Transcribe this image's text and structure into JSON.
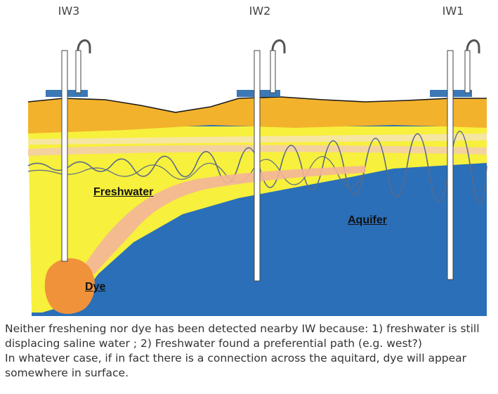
{
  "wells": [
    {
      "id": "iw3",
      "label": "IW3"
    },
    {
      "id": "iw2",
      "label": "IW2"
    },
    {
      "id": "iw1",
      "label": "IW1"
    }
  ],
  "zones": {
    "freshwater": "Freshwater",
    "aquifer": "Aquifer",
    "dye": "Dye"
  },
  "caption": [
    "Neither freshening nor dye has been detected nearby IW because: 1) freshwater is still",
    "displacing saline water ; 2) Freshwater found a preferential path (e.g. west?)",
    "In whatever case, if in fact there is a connection across the aquitard,  dye will appear",
    "somewhere in surface."
  ],
  "colors": {
    "surface": "#f2b22c",
    "freshwater": "#f7f03c",
    "aquifer": "#2a6fb8",
    "plume": "#f3b59a",
    "dye": "#f0923a",
    "pad": "#3b78b5"
  }
}
